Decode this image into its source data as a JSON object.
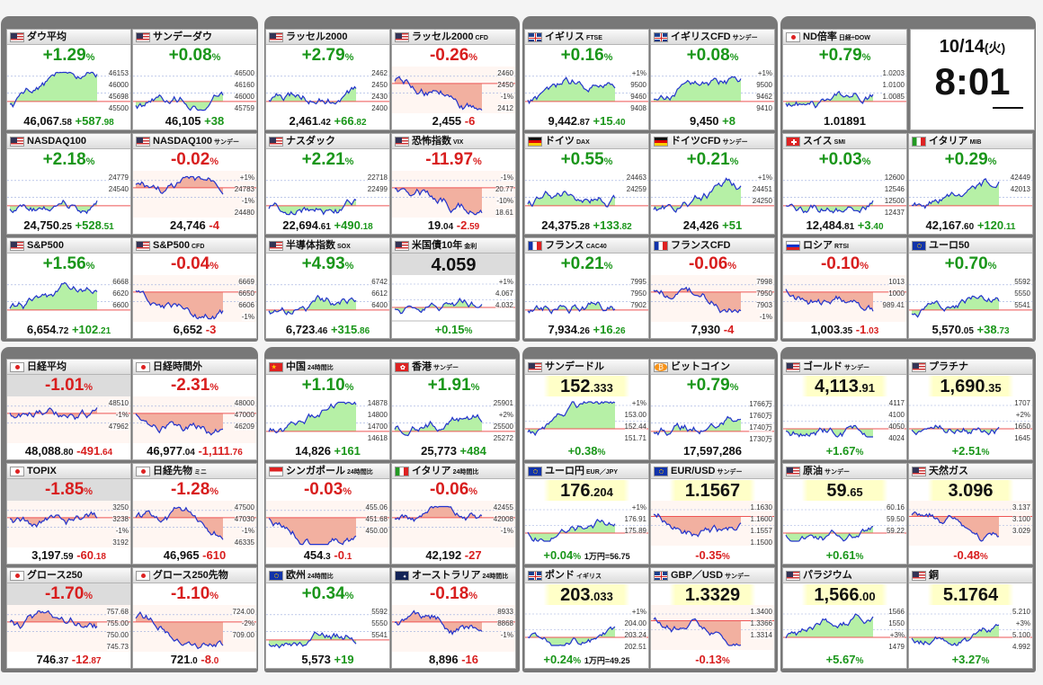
{
  "clock": {
    "date": "10/14",
    "weekday": "(火)",
    "time": "8:01"
  },
  "tiles": [
    {
      "id": "dow",
      "name": "ダウ平均",
      "sub": "",
      "flag": "us",
      "change": "+1.29",
      "dir": "up",
      "price_main": "46,067",
      "price_frac": ".58",
      "price_chg": "+587",
      "price_chg_frac": ".98",
      "labels": [
        "46153",
        "46000",
        "45698",
        "45500"
      ]
    },
    {
      "id": "sunday-dow",
      "name": "サンデーダウ",
      "sub": "",
      "flag": "us",
      "change": "+0.08",
      "dir": "up",
      "price_main": "46,105",
      "price_frac": "",
      "price_chg": "+38",
      "price_chg_frac": "",
      "labels": [
        "46500",
        "46160",
        "46000",
        "45759"
      ]
    },
    {
      "id": "russell",
      "name": "ラッセル2000",
      "sub": "",
      "flag": "us",
      "change": "+2.79",
      "dir": "up",
      "price_main": "2,461",
      "price_frac": ".42",
      "price_chg": "+66",
      "price_chg_frac": ".82",
      "labels": [
        "2462",
        "2450",
        "2430",
        "2400"
      ]
    },
    {
      "id": "russell-cfd",
      "name": "ラッセル2000",
      "sub": "CFD",
      "flag": "us",
      "change": "-0.26",
      "dir": "dn",
      "price_main": "2,455",
      "price_frac": "",
      "price_chg": "-6",
      "price_chg_frac": "",
      "labels": [
        "2460",
        "2450",
        "-1%",
        "2412"
      ]
    },
    {
      "id": "uk",
      "name": "イギリス",
      "sub": "FTSE",
      "flag": "uk",
      "change": "+0.16",
      "dir": "up",
      "price_main": "9,442",
      "price_frac": ".87",
      "price_chg": "+15",
      "price_chg_frac": ".40",
      "labels": [
        "+1%",
        "9500",
        "9460",
        "9408"
      ]
    },
    {
      "id": "uk-cfd",
      "name": "イギリスCFD",
      "sub": "サンデー",
      "flag": "uk",
      "change": "+0.08",
      "dir": "up",
      "price_main": "9,450",
      "price_frac": "",
      "price_chg": "+8",
      "price_chg_frac": "",
      "labels": [
        "+1%",
        "9500",
        "9462",
        "9410"
      ]
    },
    {
      "id": "nd-ratio",
      "name": "ND倍率",
      "sub": "日経÷DOW",
      "flag": "jp",
      "change": "+0.79",
      "dir": "up",
      "price_main": "1.01891",
      "price_frac": "",
      "price_chg": "",
      "price_chg_frac": "",
      "labels": [
        "1.0203",
        "1.0100",
        "1.0085",
        ""
      ]
    },
    {
      "id": "nasdaq100",
      "name": "NASDAQ100",
      "sub": "",
      "flag": "us",
      "change": "+2.18",
      "dir": "up",
      "price_main": "24,750",
      "price_frac": ".25",
      "price_chg": "+528",
      "price_chg_frac": ".51",
      "labels": [
        "24779",
        "24540",
        "",
        ""
      ]
    },
    {
      "id": "nasdaq100-sun",
      "name": "NASDAQ100",
      "sub": "サンデー",
      "flag": "us",
      "change": "-0.02",
      "dir": "dn",
      "price_main": "24,746",
      "price_frac": "",
      "price_chg": "-4",
      "price_chg_frac": "",
      "labels": [
        "+1%",
        "24783",
        "-1%",
        "24480"
      ]
    },
    {
      "id": "nasdaq",
      "name": "ナスダック",
      "sub": "",
      "flag": "us",
      "change": "+2.21",
      "dir": "up",
      "price_main": "22,694",
      "price_frac": ".61",
      "price_chg": "+490",
      "price_chg_frac": ".18",
      "labels": [
        "22718",
        "22499",
        "",
        ""
      ]
    },
    {
      "id": "vix",
      "name": "恐怖指数",
      "sub": "VIX",
      "flag": "us",
      "change": "-11.97",
      "dir": "dn",
      "price_main": "19",
      "price_frac": ".04",
      "price_chg": "-2",
      "price_chg_frac": ".59",
      "labels": [
        "-1%",
        "20.77",
        "-10%",
        "18.61"
      ]
    },
    {
      "id": "ger",
      "name": "ドイツ",
      "sub": "DAX",
      "flag": "de",
      "change": "+0.55",
      "dir": "up",
      "price_main": "24,375",
      "price_frac": ".28",
      "price_chg": "+133",
      "price_chg_frac": ".82",
      "labels": [
        "24463",
        "24259",
        "",
        ""
      ]
    },
    {
      "id": "ger-cfd",
      "name": "ドイツCFD",
      "sub": "サンデー",
      "flag": "de",
      "change": "+0.21",
      "dir": "up",
      "price_main": "24,426",
      "price_frac": "",
      "price_chg": "+51",
      "price_chg_frac": "",
      "labels": [
        "+1%",
        "24451",
        "24250",
        ""
      ]
    },
    {
      "id": "swiss",
      "name": "スイス",
      "sub": "SMI",
      "flag": "ch",
      "change": "+0.03",
      "dir": "up",
      "price_main": "12,484",
      "price_frac": ".81",
      "price_chg": "+3",
      "price_chg_frac": ".40",
      "labels": [
        "12600",
        "12546",
        "12500",
        "12437"
      ]
    },
    {
      "id": "italy",
      "name": "イタリア",
      "sub": "MIB",
      "flag": "it",
      "change": "+0.29",
      "dir": "up",
      "price_main": "42,167",
      "price_frac": ".60",
      "price_chg": "+120",
      "price_chg_frac": ".11",
      "labels": [
        "42449",
        "42013",
        "",
        ""
      ]
    },
    {
      "id": "sp500",
      "name": "S&P500",
      "sub": "",
      "flag": "us",
      "change": "+1.56",
      "dir": "up",
      "price_main": "6,654",
      "price_frac": ".72",
      "price_chg": "+102",
      "price_chg_frac": ".21",
      "labels": [
        "6668",
        "6620",
        "6600",
        ""
      ]
    },
    {
      "id": "sp500-cfd",
      "name": "S&P500",
      "sub": "CFD",
      "flag": "us",
      "change": "-0.04",
      "dir": "dn",
      "price_main": "6,652",
      "price_frac": "",
      "price_chg": "-3",
      "price_chg_frac": "",
      "labels": [
        "6669",
        "6650",
        "6606",
        "-1%"
      ]
    },
    {
      "id": "sox",
      "name": "半導体指数",
      "sub": "SOX",
      "flag": "us",
      "change": "+4.93",
      "dir": "up",
      "price_main": "6,723",
      "price_frac": ".46",
      "price_chg": "+315",
      "price_chg_frac": ".86",
      "labels": [
        "6742",
        "6612",
        "6400",
        ""
      ]
    },
    {
      "id": "us10y",
      "name": "米国債10年",
      "sub": "金利",
      "flag": "us",
      "price_big": "4.059",
      "change": "+0.15",
      "dir": "up",
      "labels": [
        "+1%",
        "4.067",
        "4.032",
        ""
      ]
    },
    {
      "id": "france",
      "name": "フランス",
      "sub": "CAC40",
      "flag": "fr",
      "change": "+0.21",
      "dir": "up",
      "price_main": "7,934",
      "price_frac": ".26",
      "price_chg": "+16",
      "price_chg_frac": ".26",
      "labels": [
        "7995",
        "7950",
        "7902",
        ""
      ]
    },
    {
      "id": "france-cfd",
      "name": "フランスCFD",
      "sub": "",
      "flag": "fr",
      "change": "-0.06",
      "dir": "dn",
      "price_main": "7,930",
      "price_frac": "",
      "price_chg": "-4",
      "price_chg_frac": "",
      "labels": [
        "7998",
        "7950",
        "7903",
        "-1%"
      ]
    },
    {
      "id": "russia",
      "name": "ロシア",
      "sub": "RTSI",
      "flag": "ru",
      "change": "-0.10",
      "dir": "dn",
      "price_main": "1,003",
      "price_frac": ".35",
      "price_chg": "-1",
      "price_chg_frac": ".03",
      "labels": [
        "1013",
        "1000",
        "989.41",
        ""
      ]
    },
    {
      "id": "euro50",
      "name": "ユーロ50",
      "sub": "",
      "flag": "eu",
      "change": "+0.70",
      "dir": "up",
      "price_main": "5,570",
      "price_frac": ".05",
      "price_chg": "+38",
      "price_chg_frac": ".73",
      "labels": [
        "5592",
        "5550",
        "5541",
        ""
      ]
    },
    {
      "id": "nikkei",
      "name": "日経平均",
      "sub": "",
      "flag": "jp",
      "change": "-1.01",
      "dir": "dn",
      "price_main": "48,088",
      "price_frac": ".80",
      "price_chg": "-491",
      "price_chg_frac": ".64",
      "labels": [
        "48510",
        "-1%",
        "47962",
        ""
      ]
    },
    {
      "id": "nikkei-ah",
      "name": "日経時間外",
      "sub": "",
      "flag": "jp",
      "change": "-2.31",
      "dir": "dn",
      "price_main": "46,977",
      "price_frac": ".04",
      "price_chg": "-1,111",
      "price_chg_frac": ".76",
      "labels": [
        "48000",
        "47000",
        "46209",
        ""
      ]
    },
    {
      "id": "china",
      "name": "中国",
      "sub": "24時間比",
      "flag": "cn",
      "change": "+1.10",
      "dir": "up",
      "price_main": "14,826",
      "price_frac": "",
      "price_chg": "+161",
      "price_chg_frac": "",
      "labels": [
        "14878",
        "14800",
        "14700",
        "14618"
      ]
    },
    {
      "id": "hk",
      "name": "香港",
      "sub": "サンデー",
      "flag": "hk",
      "change": "+1.91",
      "dir": "up",
      "price_main": "25,773",
      "price_frac": "",
      "price_chg": "+484",
      "price_chg_frac": "",
      "labels": [
        "25901",
        "+2%",
        "25500",
        "25272"
      ]
    },
    {
      "id": "sunday-usdjpy",
      "name": "サンデードル",
      "sub": "",
      "flag": "us",
      "price_big": "152",
      "price_big_frac": ".333",
      "change": "+0.38",
      "dir": "up",
      "labels": [
        "+1%",
        "153.00",
        "152.44",
        "151.71"
      ]
    },
    {
      "id": "btc",
      "name": "ビットコイン",
      "sub": "",
      "flag": "btc",
      "change": "+0.79",
      "dir": "up",
      "price_main": "17,597,286",
      "price_frac": "",
      "price_chg": "",
      "price_chg_frac": "",
      "labels": [
        "1766万",
        "1760万",
        "1740万",
        "1730万"
      ]
    },
    {
      "id": "gold",
      "name": "ゴールド",
      "sub": "サンデー",
      "flag": "us",
      "price_big": "4,113",
      "price_big_frac": ".91",
      "change": "+1.67",
      "dir": "up",
      "labels": [
        "4117",
        "4100",
        "4050",
        "4024"
      ]
    },
    {
      "id": "platinum",
      "name": "プラチナ",
      "sub": "",
      "flag": "us",
      "price_big": "1,690",
      "price_big_frac": ".35",
      "change": "+2.51",
      "dir": "up",
      "labels": [
        "1707",
        "+2%",
        "1650",
        "1645"
      ]
    },
    {
      "id": "topix",
      "name": "TOPIX",
      "sub": "",
      "flag": "jp",
      "change": "-1.85",
      "dir": "dn",
      "price_main": "3,197",
      "price_frac": ".59",
      "price_chg": "-60",
      "price_chg_frac": ".18",
      "labels": [
        "3250",
        "3238",
        "-1%",
        "3192"
      ]
    },
    {
      "id": "nikkei-fut",
      "name": "日経先物",
      "sub": "ミニ",
      "flag": "jp",
      "change": "-1.28",
      "dir": "dn",
      "price_main": "46,965",
      "price_frac": "",
      "price_chg": "-610",
      "price_chg_frac": "",
      "labels": [
        "47500",
        "47030",
        "-1%",
        "46335"
      ]
    },
    {
      "id": "singapore",
      "name": "シンガポール",
      "sub": "24時間比",
      "flag": "sg",
      "change": "-0.03",
      "dir": "dn",
      "price_main": "454",
      "price_frac": ".3",
      "price_chg": "-0",
      "price_chg_frac": ".1",
      "labels": [
        "455.06",
        "451.68",
        "450.00",
        ""
      ]
    },
    {
      "id": "italy24",
      "name": "イタリア",
      "sub": "24時間比",
      "flag": "it",
      "change": "-0.06",
      "dir": "dn",
      "price_main": "42,192",
      "price_frac": "",
      "price_chg": "-27",
      "price_chg_frac": "",
      "labels": [
        "42455",
        "42008",
        "-1%",
        ""
      ]
    },
    {
      "id": "eurjpy",
      "name": "ユーロ円",
      "sub": "EUR／JPY",
      "flag": "eu",
      "price_big": "176",
      "price_big_frac": ".204",
      "change": "+0.04",
      "dir": "up",
      "note": "1万円=56.75",
      "labels": [
        "+1%",
        "176.91",
        "175.89",
        ""
      ]
    },
    {
      "id": "eurusd",
      "name": "EUR/USD",
      "sub": "サンデー",
      "flag": "eu",
      "price_big": "1.1567",
      "price_big_frac": "",
      "change": "-0.35",
      "dir": "dn",
      "labels": [
        "1.1630",
        "1.1600",
        "1.1557",
        "1.1500"
      ]
    },
    {
      "id": "crude",
      "name": "原油",
      "sub": "サンデー",
      "flag": "us",
      "price_big": "59",
      "price_big_frac": ".65",
      "change": "+0.61",
      "dir": "up",
      "labels": [
        "60.16",
        "59.50",
        "59.22",
        ""
      ]
    },
    {
      "id": "natgas",
      "name": "天然ガス",
      "sub": "",
      "flag": "us",
      "price_big": "3.096",
      "price_big_frac": "",
      "change": "-0.48",
      "dir": "dn",
      "labels": [
        "3.137",
        "3.100",
        "3.029",
        ""
      ]
    },
    {
      "id": "growth250",
      "name": "グロース250",
      "sub": "",
      "flag": "jp",
      "change": "-1.70",
      "dir": "dn",
      "price_main": "746",
      "price_frac": ".37",
      "price_chg": "-12",
      "price_chg_frac": ".87",
      "labels": [
        "757.68",
        "755.00",
        "750.00",
        "745.73"
      ]
    },
    {
      "id": "growth250-fut",
      "name": "グロース250先物",
      "sub": "",
      "flag": "jp",
      "change": "-1.10",
      "dir": "dn",
      "price_main": "721",
      "price_frac": ".0",
      "price_chg": "-8",
      "price_chg_frac": ".0",
      "labels": [
        "724.00",
        "-2%",
        "709.00",
        ""
      ]
    },
    {
      "id": "europe",
      "name": "欧州",
      "sub": "24時間比",
      "flag": "eu",
      "change": "+0.34",
      "dir": "up",
      "price_main": "5,573",
      "price_frac": "",
      "price_chg": "+19",
      "price_chg_frac": "",
      "labels": [
        "5592",
        "5550",
        "5541",
        ""
      ]
    },
    {
      "id": "australia",
      "name": "オーストラリア",
      "sub": "24時間比",
      "flag": "au",
      "change": "-0.18",
      "dir": "dn",
      "price_main": "8,896",
      "price_frac": "",
      "price_chg": "-16",
      "price_chg_frac": "",
      "labels": [
        "8933",
        "8868",
        "-1%",
        ""
      ]
    },
    {
      "id": "gbpjpy",
      "name": "ポンド",
      "sub": "イギリス",
      "flag": "uk",
      "price_big": "203",
      "price_big_frac": ".033",
      "change": "+0.24",
      "dir": "up",
      "note": "1万円=49.25",
      "labels": [
        "+1%",
        "204.00",
        "203.24",
        "202.51"
      ]
    },
    {
      "id": "gbpusd",
      "name": "GBP／USD",
      "sub": "サンデー",
      "flag": "uk",
      "price_big": "1.3329",
      "price_big_frac": "",
      "change": "-0.13",
      "dir": "dn",
      "labels": [
        "1.3400",
        "1.3366",
        "1.3314",
        ""
      ]
    },
    {
      "id": "palladium",
      "name": "パラジウム",
      "sub": "",
      "flag": "us",
      "price_big": "1,566",
      "price_big_frac": ".00",
      "change": "+5.67",
      "dir": "up",
      "labels": [
        "1566",
        "1550",
        "+3%",
        "1479"
      ]
    },
    {
      "id": "copper",
      "name": "銅",
      "sub": "",
      "flag": "us",
      "price_big": "5.1764",
      "price_big_frac": "",
      "change": "+3.27",
      "dir": "up",
      "labels": [
        "5.210",
        "+3%",
        "5.100",
        "4.992"
      ]
    }
  ]
}
